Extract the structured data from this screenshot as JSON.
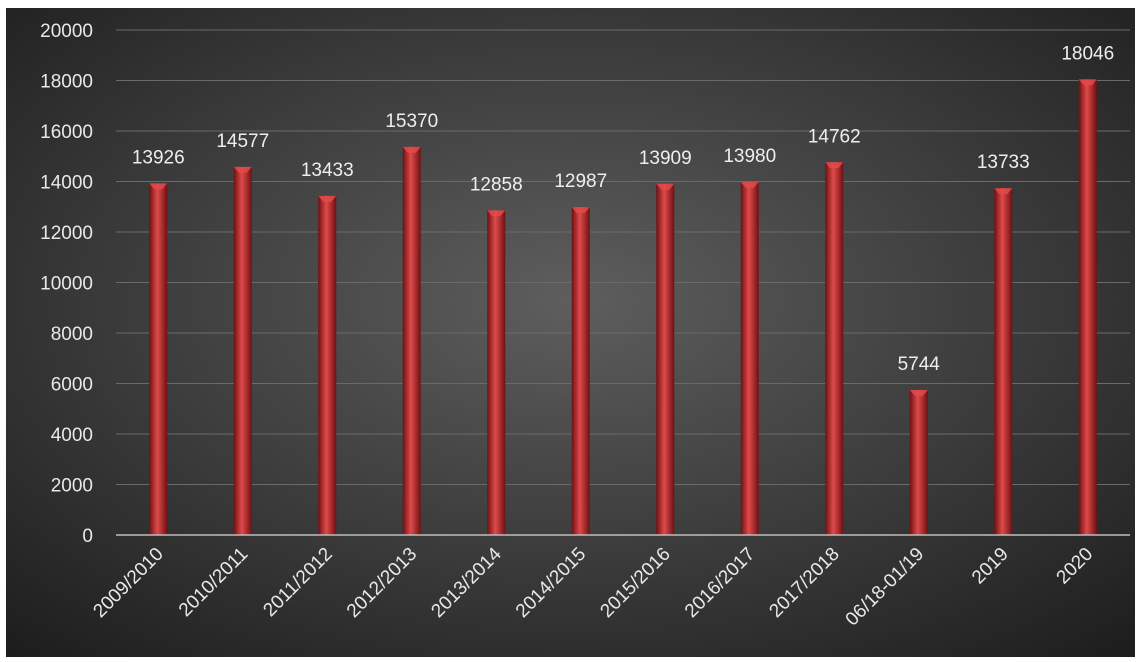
{
  "chart_data": {
    "type": "bar",
    "categories": [
      "2009/2010",
      "2010/2011",
      "2011/2012",
      "2012/2013",
      "2013/2014",
      "2014/2015",
      "2015/2016",
      "2016/2017",
      "2017/2018",
      "06/18-01/19",
      "2019",
      "2020"
    ],
    "values": [
      13926,
      14577,
      13433,
      15370,
      12858,
      12987,
      13909,
      13980,
      14762,
      5744,
      13733,
      18046
    ],
    "y_ticks": [
      "0",
      "2000",
      "4000",
      "6000",
      "8000",
      "10000",
      "12000",
      "14000",
      "16000",
      "18000",
      "20000"
    ],
    "ylim": [
      0,
      20000
    ],
    "title": "",
    "xlabel": "",
    "ylabel": "",
    "grid": true,
    "legend": "none",
    "colors": {
      "bar": "#b8262b",
      "bar_highlight": "#e04a4a",
      "bar_shadow": "#6e1013",
      "background_center": "#5e5e5e",
      "background_edge": "#1c1c1c",
      "gridline": "#6a6a6a",
      "axis": "#bdbdbd",
      "text": "#e8e8e8"
    }
  }
}
